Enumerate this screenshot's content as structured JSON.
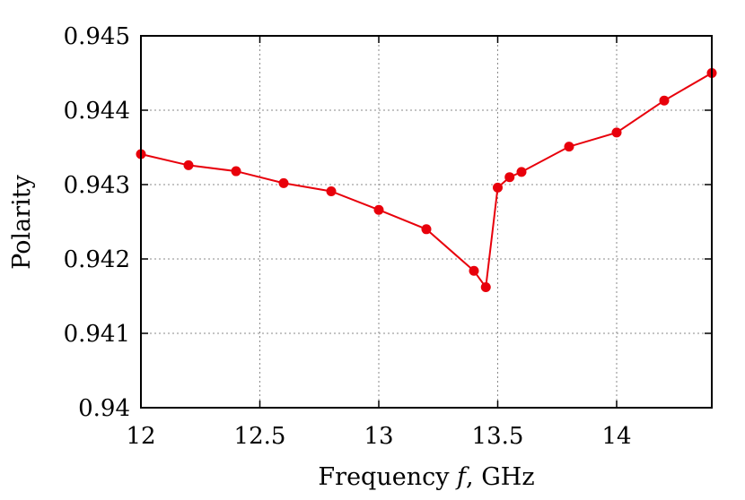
{
  "chart_data": {
    "type": "line",
    "xlabel_parts": [
      "Frequency ",
      "f",
      ", GHz"
    ],
    "ylabel": "Polarity",
    "xlim": [
      12,
      14.4
    ],
    "ylim": [
      0.94,
      0.945
    ],
    "grid": true,
    "xticks": [
      {
        "value": 12,
        "label": "12"
      },
      {
        "value": 12.5,
        "label": "12.5"
      },
      {
        "value": 13,
        "label": "13"
      },
      {
        "value": 13.5,
        "label": "13.5"
      },
      {
        "value": 14,
        "label": "14"
      }
    ],
    "yticks": [
      {
        "value": 0.94,
        "label": "0.94"
      },
      {
        "value": 0.941,
        "label": "0.941"
      },
      {
        "value": 0.942,
        "label": "0.942"
      },
      {
        "value": 0.943,
        "label": "0.943"
      },
      {
        "value": 0.944,
        "label": "0.944"
      },
      {
        "value": 0.945,
        "label": "0.945"
      }
    ],
    "series": [
      {
        "color": "#e8000b",
        "x": [
          12.0,
          12.2,
          12.4,
          12.6,
          12.8,
          13.0,
          13.2,
          13.4,
          13.45,
          13.5,
          13.55,
          13.6,
          13.8,
          14.0,
          14.2,
          14.4
        ],
        "y": [
          0.94341,
          0.94326,
          0.94318,
          0.94302,
          0.94291,
          0.94266,
          0.9424,
          0.94184,
          0.94162,
          0.94296,
          0.9431,
          0.94317,
          0.94351,
          0.9437,
          0.94413,
          0.9445
        ]
      }
    ]
  }
}
